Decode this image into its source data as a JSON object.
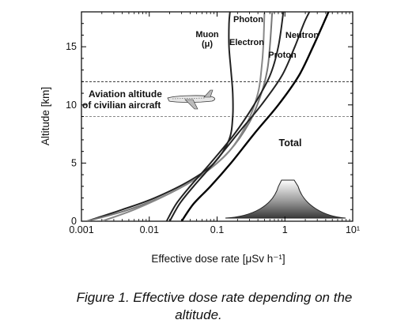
{
  "caption": {
    "line1": "Figure 1. Effective dose rate depending on the",
    "line2": "altitude."
  },
  "chart_data": {
    "type": "line",
    "title": "",
    "xlabel": "Effective dose rate  [μSv h⁻¹]",
    "ylabel": "Altitude [km]",
    "xscale": "log",
    "xlim": [
      0.001,
      10
    ],
    "ylim": [
      0,
      18
    ],
    "x_ticks": [
      0.001,
      0.01,
      0.1,
      1,
      10
    ],
    "x_tick_labels": [
      "0.001",
      "0.01",
      "0.1",
      "1",
      "10¹"
    ],
    "y_ticks": [
      0,
      5,
      10,
      15
    ],
    "y_tick_labels": [
      "0",
      "5",
      "10",
      "15"
    ],
    "reference_lines": [
      {
        "y": 12,
        "style": "dashed"
      },
      {
        "y": 9,
        "style": "dashed"
      }
    ],
    "annotation": "Aviation altitude\nof civilian aircraft",
    "series": [
      {
        "name": "Muon\n(μ)",
        "color": "#222222",
        "points": [
          [
            0.0012,
            0
          ],
          [
            0.004,
            1
          ],
          [
            0.012,
            2
          ],
          [
            0.04,
            3.5
          ],
          [
            0.09,
            5
          ],
          [
            0.15,
            7
          ],
          [
            0.17,
            9
          ],
          [
            0.17,
            11
          ],
          [
            0.16,
            13
          ],
          [
            0.15,
            15
          ],
          [
            0.15,
            17
          ],
          [
            0.155,
            18
          ]
        ]
      },
      {
        "name": "Photon",
        "color": "#777777",
        "points": [
          [
            0.0012,
            0
          ],
          [
            0.005,
            1
          ],
          [
            0.02,
            2.4
          ],
          [
            0.06,
            4
          ],
          [
            0.15,
            6
          ],
          [
            0.3,
            8.5
          ],
          [
            0.45,
            11
          ],
          [
            0.55,
            13
          ],
          [
            0.6,
            15
          ],
          [
            0.65,
            18
          ]
        ]
      },
      {
        "name": "Electron",
        "color": "#888888",
        "points": [
          [
            0.002,
            0
          ],
          [
            0.006,
            1
          ],
          [
            0.02,
            2.4
          ],
          [
            0.06,
            4
          ],
          [
            0.15,
            6
          ],
          [
            0.28,
            8.5
          ],
          [
            0.4,
            11
          ],
          [
            0.45,
            13
          ],
          [
            0.48,
            15
          ],
          [
            0.5,
            18
          ]
        ]
      },
      {
        "name": "Proton",
        "color": "#222222",
        "points": [
          [
            0.018,
            0
          ],
          [
            0.025,
            1.5
          ],
          [
            0.04,
            3
          ],
          [
            0.08,
            5
          ],
          [
            0.18,
            7.5
          ],
          [
            0.35,
            10
          ],
          [
            0.6,
            12.5
          ],
          [
            0.8,
            15
          ],
          [
            0.95,
            18
          ]
        ]
      },
      {
        "name": "Neutron",
        "color": "#222222",
        "points": [
          [
            0.02,
            0
          ],
          [
            0.028,
            1.5
          ],
          [
            0.045,
            3
          ],
          [
            0.09,
            5
          ],
          [
            0.2,
            7.5
          ],
          [
            0.45,
            10
          ],
          [
            0.9,
            12.5
          ],
          [
            1.4,
            15
          ],
          [
            1.9,
            17
          ],
          [
            2.3,
            18
          ]
        ]
      },
      {
        "name": "Total",
        "color": "#000000",
        "points": [
          [
            0.03,
            0
          ],
          [
            0.045,
            1.5
          ],
          [
            0.08,
            3
          ],
          [
            0.16,
            5
          ],
          [
            0.35,
            7.5
          ],
          [
            0.8,
            10
          ],
          [
            1.6,
            12.5
          ],
          [
            2.6,
            15
          ],
          [
            3.7,
            17
          ],
          [
            4.4,
            18
          ]
        ]
      }
    ]
  }
}
